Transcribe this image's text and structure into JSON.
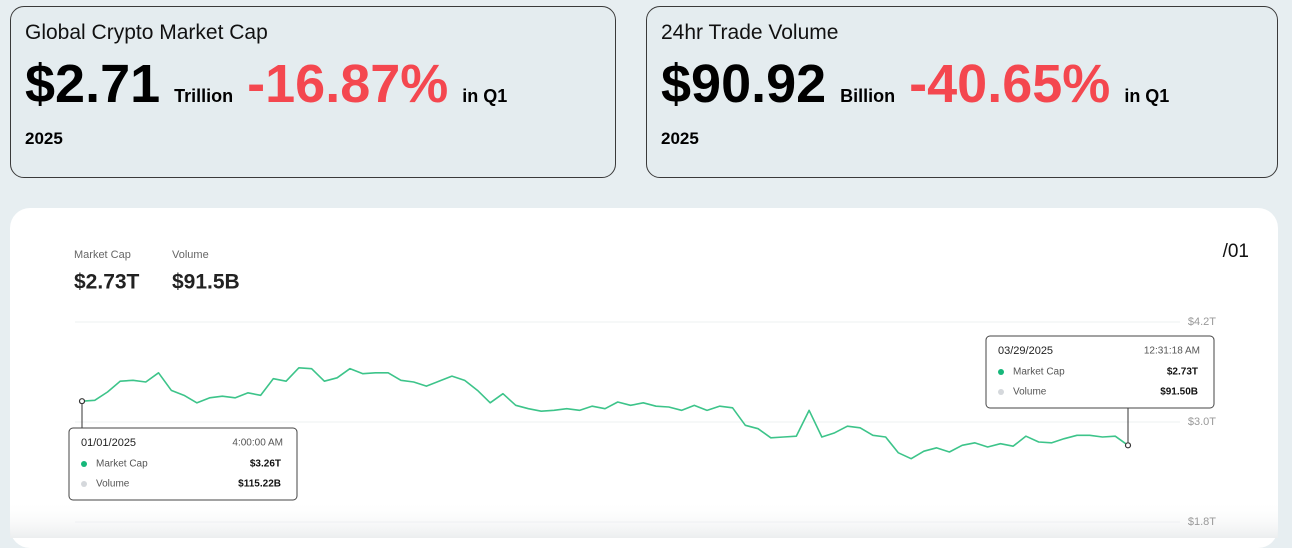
{
  "cards": [
    {
      "title": "Global Crypto Market Cap",
      "value": "$2.71",
      "unit": "Trillion",
      "change": "-16.87%",
      "period": "in Q1",
      "year": "2025"
    },
    {
      "title": "24hr Trade Volume",
      "value": "$90.92",
      "unit": "Billion",
      "change": "-40.65%",
      "period": "in Q1",
      "year": "2025"
    }
  ],
  "chart_data": {
    "type": "line",
    "page_label": "/01",
    "summary": [
      {
        "label": "Market Cap",
        "value": "$2.73T"
      },
      {
        "label": "Volume",
        "value": "$91.5B"
      }
    ],
    "ylim": [
      1.8,
      4.2
    ],
    "yticks": [
      {
        "value": 1.8,
        "label": "$1.8T"
      },
      {
        "value": 3.0,
        "label": "$3.0T"
      },
      {
        "value": 4.2,
        "label": "$4.2T"
      }
    ],
    "grid": true,
    "series": [
      {
        "name": "Market Cap",
        "color": "#3dc48a",
        "values": [
          3.25,
          3.26,
          3.36,
          3.49,
          3.5,
          3.48,
          3.59,
          3.38,
          3.32,
          3.23,
          3.29,
          3.31,
          3.29,
          3.35,
          3.32,
          3.52,
          3.49,
          3.65,
          3.64,
          3.49,
          3.53,
          3.64,
          3.58,
          3.59,
          3.59,
          3.5,
          3.48,
          3.43,
          3.49,
          3.55,
          3.5,
          3.38,
          3.23,
          3.34,
          3.2,
          3.16,
          3.13,
          3.14,
          3.16,
          3.14,
          3.19,
          3.16,
          3.24,
          3.2,
          3.23,
          3.19,
          3.18,
          3.14,
          3.2,
          3.14,
          3.19,
          3.17,
          2.96,
          2.92,
          2.81,
          2.82,
          2.83,
          3.14,
          2.82,
          2.87,
          2.95,
          2.93,
          2.84,
          2.82,
          2.63,
          2.56,
          2.65,
          2.69,
          2.64,
          2.72,
          2.75,
          2.7,
          2.74,
          2.71,
          2.83,
          2.76,
          2.75,
          2.8,
          2.84,
          2.84,
          2.82,
          2.83,
          2.72
        ]
      }
    ],
    "tooltips": [
      {
        "date": "01/01/2025",
        "time": "4:00:00 AM",
        "rows": [
          {
            "label": "Market Cap",
            "value": "$3.26T",
            "dot": "#16b77a"
          },
          {
            "label": "Volume",
            "value": "$115.22B",
            "dot": "#d5d8dc"
          }
        ]
      },
      {
        "date": "03/29/2025",
        "time": "12:31:18 AM",
        "rows": [
          {
            "label": "Market Cap",
            "value": "$2.73T",
            "dot": "#16b77a"
          },
          {
            "label": "Volume",
            "value": "$91.50B",
            "dot": "#d5d8dc"
          }
        ]
      }
    ]
  }
}
